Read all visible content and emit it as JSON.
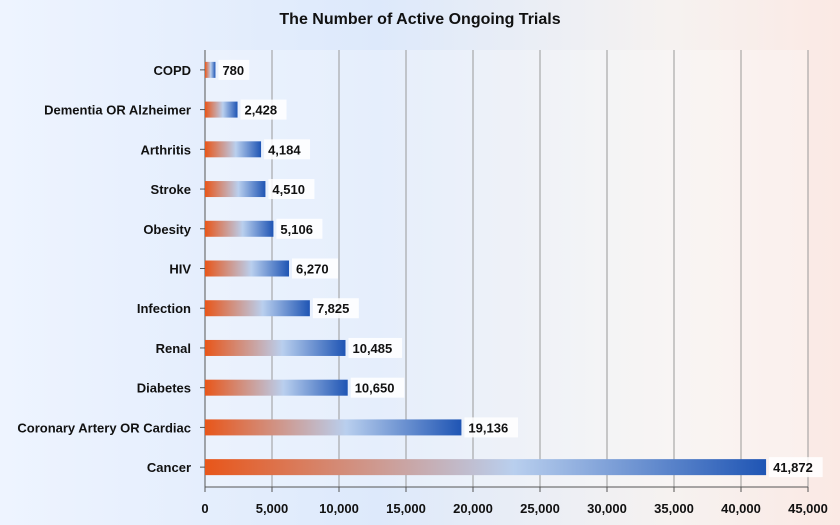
{
  "chart_data": {
    "type": "bar",
    "orientation": "horizontal",
    "title": "The Number of Active Ongoing Trials",
    "xlabel": "",
    "ylabel": "",
    "categories": [
      "COPD",
      "Dementia OR Alzheimer",
      "Arthritis",
      "Stroke",
      "Obesity",
      "HIV",
      "Infection",
      "Renal",
      "Diabetes",
      "Coronary Artery OR Cardiac",
      "Cancer"
    ],
    "values": [
      780,
      2428,
      4184,
      4510,
      5106,
      6270,
      7825,
      10485,
      10650,
      19136,
      41872
    ],
    "value_labels": [
      "780",
      "2,428",
      "4,184",
      "4,510",
      "5,106",
      "6,270",
      "7,825",
      "10,485",
      "10,650",
      "19,136",
      "41,872"
    ],
    "xlim": [
      0,
      45000
    ],
    "xticks": [
      0,
      5000,
      10000,
      15000,
      20000,
      25000,
      30000,
      35000,
      40000,
      45000
    ],
    "xtick_labels": [
      "0",
      "5,000",
      "10,000",
      "15,000",
      "20,000",
      "25,000",
      "30,000",
      "35,000",
      "40,000",
      "45,000"
    ],
    "grid": "vertical",
    "legend": "none",
    "colors": {
      "bar_start": "#e8561a",
      "bar_mid": "#b9cfee",
      "bar_end": "#1f55b4",
      "grid": "#999999"
    }
  }
}
